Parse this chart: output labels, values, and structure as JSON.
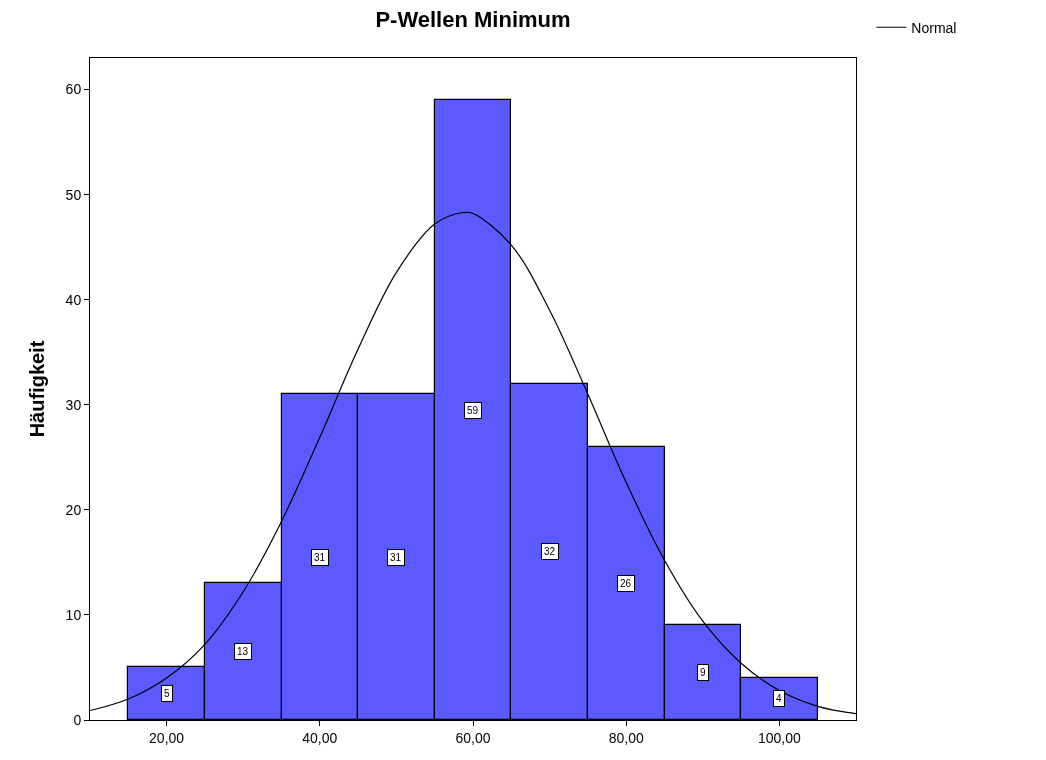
{
  "chart_data": {
    "type": "histogram",
    "title": "P-Wellen Minimum",
    "ylabel": "Häufigkeit",
    "bins": [
      15,
      25,
      35,
      45,
      55,
      65,
      75,
      85,
      95,
      105
    ],
    "values": [
      5,
      13,
      31,
      31,
      59,
      32,
      26,
      9,
      4
    ],
    "color": "#5a5aff",
    "value_labels": [
      "5",
      "13",
      "31",
      "31",
      "59",
      "32",
      "26",
      "9",
      "4"
    ],
    "series": [
      {
        "name": "Normal",
        "type": "line",
        "color": "#000000",
        "x": [
          10,
          15,
          20,
          25,
          30,
          35,
          40,
          45,
          50,
          55,
          58.7,
          60,
          65,
          70,
          75,
          80,
          85,
          90,
          95,
          100,
          105,
          110
        ],
        "values": [
          0.9,
          2.0,
          4.0,
          7.2,
          12.2,
          18.9,
          26.9,
          35.3,
          42.6,
          47.2,
          48.3,
          48.2,
          45.2,
          39.0,
          31.0,
          22.6,
          15.2,
          9.4,
          5.4,
          2.8,
          1.3,
          0.6
        ]
      }
    ],
    "xlim": [
      10,
      110
    ],
    "xticks": [
      {
        "value": 20,
        "label": "20,00"
      },
      {
        "value": 40,
        "label": "40,00"
      },
      {
        "value": 60,
        "label": "60,00"
      },
      {
        "value": 80,
        "label": "80,00"
      },
      {
        "value": 100,
        "label": "100,00"
      }
    ],
    "ylim": [
      0,
      63
    ],
    "yticks": [
      0,
      10,
      20,
      30,
      40,
      50,
      60
    ],
    "grid": false,
    "legend": "top right"
  }
}
